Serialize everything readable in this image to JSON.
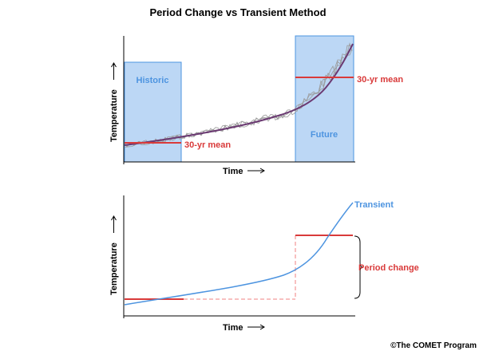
{
  "title": "Period Change vs Transient Method",
  "top_panel": {
    "historic_label": "Historic",
    "future_label": "Future",
    "historic_mean_label": "30-yr mean",
    "future_mean_label": "30-yr mean",
    "x_axis_label": "Time",
    "y_axis_label": "Temperature"
  },
  "bottom_panel": {
    "transient_label": "Transient",
    "period_change_label": "Period change",
    "x_axis_label": "Time",
    "y_axis_label": "Temperature"
  },
  "credit": "©The COMET Program",
  "colors": {
    "period_fill": "#bcd7f5",
    "period_edge": "#4d94e0",
    "mean_line": "#d93a3a",
    "trend_line": "#6b3a72",
    "noise": "#9a9a9a",
    "transient": "#4d94e0",
    "dashed": "#f08080",
    "label_blue": "#4d94e0",
    "label_red": "#d93a3a"
  }
}
